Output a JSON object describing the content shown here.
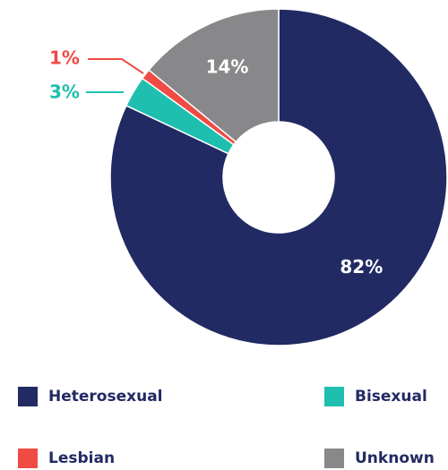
{
  "chart_data": {
    "type": "pie",
    "categories": [
      "Heterosexual",
      "Bisexual",
      "Lesbian",
      "Unknown"
    ],
    "values": [
      82,
      3,
      1,
      14
    ],
    "value_labels": [
      "82%",
      "3%",
      "1%",
      "14%"
    ],
    "colors": [
      "#222a63",
      "#1fbfb0",
      "#f04a45",
      "#88888b"
    ]
  }
}
